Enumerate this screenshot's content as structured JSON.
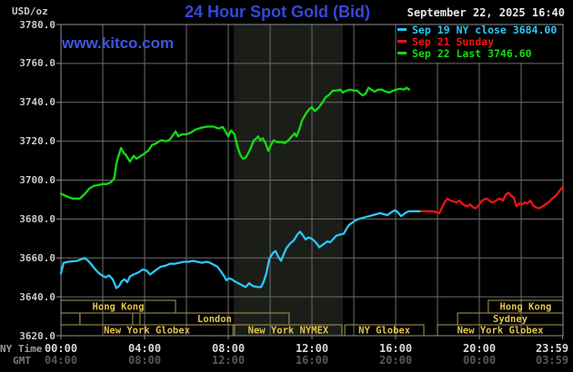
{
  "header": {
    "unit": "USD/oz",
    "title": "24 Hour Spot Gold (Bid)",
    "datetime": "September 22, 2025 16:40",
    "watermark": "www.kitco.com"
  },
  "legend": {
    "items": [
      {
        "label": "Sep 19 NY close 3684.00",
        "color": "#2cc7f6"
      },
      {
        "label": "Sep 21 Sunday",
        "color": "#f21414"
      },
      {
        "label": "Sep 22 Last 3746.60",
        "color": "#13dc13"
      }
    ]
  },
  "axis": {
    "ny_time_label": "NY Time",
    "gmt_label": "GMT",
    "y_ticks": [
      "3780.0",
      "3760.0",
      "3740.0",
      "3720.0",
      "3700.0",
      "3680.0",
      "3660.0",
      "3640.0",
      "3620.0"
    ],
    "x_ticks": [
      {
        "hour": 0,
        "ny": "00:00",
        "gmt": "04:00"
      },
      {
        "hour": 4,
        "ny": "04:00",
        "gmt": "08:00"
      },
      {
        "hour": 8,
        "ny": "08:00",
        "gmt": "12:00"
      },
      {
        "hour": 12,
        "ny": "12:00",
        "gmt": "16:00"
      },
      {
        "hour": 16,
        "ny": "16:00",
        "gmt": "20:00"
      },
      {
        "hour": 20,
        "ny": "20:00",
        "gmt": "00:00"
      },
      {
        "hour": 23.983,
        "ny": "23:59",
        "gmt": "03:59"
      }
    ]
  },
  "sessions": {
    "rows": [
      {
        "boxes": [
          {
            "start_hour": 0,
            "end_hour": 5.48,
            "label": "Hong Kong"
          },
          {
            "start_hour": 20.43,
            "end_hour": 24,
            "label": "Hong Kong"
          }
        ]
      },
      {
        "boxes": [
          {
            "start_hour": 0,
            "end_hour": 0.91,
            "label": ""
          },
          {
            "start_hour": 0.91,
            "end_hour": 3.43,
            "label": ""
          },
          {
            "start_hour": 3.78,
            "end_hour": 10.91,
            "label": "London"
          },
          {
            "start_hour": 18.96,
            "end_hour": 24,
            "label": "Sydney"
          }
        ]
      },
      {
        "boxes": [
          {
            "start_hour": 0,
            "end_hour": 8.22,
            "label": "New York Globex"
          },
          {
            "start_hour": 8.3,
            "end_hour": 13.43,
            "label": "New York NYMEX"
          },
          {
            "start_hour": 13.57,
            "end_hour": 17.35,
            "label": "NY Globex"
          },
          {
            "start_hour": 18,
            "end_hour": 24,
            "label": "New York Globex"
          }
        ]
      }
    ]
  },
  "colors": {
    "background": "#000000",
    "plot_border": "#8f8f8f",
    "grid": "#6e6e6e",
    "band": "#1a1d18",
    "session_border": "#a79d52",
    "session_text": "#e2c24e",
    "ny_numbers": "#d9d9d9",
    "gmt_numbers": "#585858"
  },
  "chart_data": {
    "type": "line",
    "title": "24 Hour Spot Gold (Bid)",
    "ylabel": "USD/oz",
    "ylim": [
      3620,
      3780
    ],
    "xlim_hours": [
      0,
      24
    ],
    "grid": true,
    "band_hours": [
      8.26,
      13.48
    ],
    "band_note": "New York NYMEX session highlight",
    "series": [
      {
        "name": "Sep 22 Last 3746.60",
        "color": "#13dc13",
        "points": [
          [
            0,
            3693
          ],
          [
            0.3,
            3691.5
          ],
          [
            0.55,
            3690.5
          ],
          [
            0.9,
            3690.5
          ],
          [
            1.15,
            3693
          ],
          [
            1.35,
            3695.5
          ],
          [
            1.55,
            3697
          ],
          [
            1.8,
            3697.5
          ],
          [
            2,
            3698
          ],
          [
            2.2,
            3698
          ],
          [
            2.4,
            3699
          ],
          [
            2.55,
            3701
          ],
          [
            2.65,
            3708.5
          ],
          [
            2.87,
            3716.5
          ],
          [
            3,
            3714
          ],
          [
            3.1,
            3713
          ],
          [
            3.3,
            3709.5
          ],
          [
            3.48,
            3712.5
          ],
          [
            3.6,
            3711
          ],
          [
            3.7,
            3711.5
          ],
          [
            3.96,
            3713.5
          ],
          [
            4.17,
            3715
          ],
          [
            4.35,
            3718
          ],
          [
            4.57,
            3719
          ],
          [
            4.78,
            3720.5
          ],
          [
            5.04,
            3720
          ],
          [
            5.22,
            3721
          ],
          [
            5.48,
            3725
          ],
          [
            5.61,
            3722.5
          ],
          [
            5.78,
            3723.5
          ],
          [
            6,
            3723.5
          ],
          [
            6.22,
            3724.5
          ],
          [
            6.43,
            3726
          ],
          [
            6.74,
            3727
          ],
          [
            7,
            3727.5
          ],
          [
            7.3,
            3727.5
          ],
          [
            7.52,
            3726.5
          ],
          [
            7.74,
            3727.3
          ],
          [
            7.87,
            3725
          ],
          [
            8,
            3722.5
          ],
          [
            8.13,
            3725.5
          ],
          [
            8.3,
            3723.5
          ],
          [
            8.43,
            3717.5
          ],
          [
            8.57,
            3713
          ],
          [
            8.7,
            3711
          ],
          [
            8.83,
            3711.5
          ],
          [
            8.96,
            3714
          ],
          [
            9.09,
            3717
          ],
          [
            9.22,
            3720.5
          ],
          [
            9.35,
            3721.5
          ],
          [
            9.43,
            3722.5
          ],
          [
            9.52,
            3720.5
          ],
          [
            9.65,
            3721.5
          ],
          [
            9.78,
            3719
          ],
          [
            9.91,
            3715
          ],
          [
            10.04,
            3718
          ],
          [
            10.17,
            3720.5
          ],
          [
            10.35,
            3719.5
          ],
          [
            10.52,
            3719.5
          ],
          [
            10.7,
            3719
          ],
          [
            10.87,
            3720.5
          ],
          [
            11.04,
            3722.5
          ],
          [
            11.17,
            3724
          ],
          [
            11.26,
            3722.5
          ],
          [
            11.39,
            3726
          ],
          [
            11.52,
            3730.5
          ],
          [
            11.7,
            3734
          ],
          [
            11.87,
            3736.5
          ],
          [
            12,
            3737.5
          ],
          [
            12.13,
            3735.5
          ],
          [
            12.3,
            3737
          ],
          [
            12.48,
            3739.5
          ],
          [
            12.65,
            3742.5
          ],
          [
            12.83,
            3744
          ],
          [
            13,
            3746
          ],
          [
            13.17,
            3746
          ],
          [
            13.35,
            3746.5
          ],
          [
            13.48,
            3745
          ],
          [
            13.65,
            3746
          ],
          [
            13.83,
            3746.5
          ],
          [
            14,
            3746
          ],
          [
            14.17,
            3746
          ],
          [
            14.3,
            3744.5
          ],
          [
            14.43,
            3743.5
          ],
          [
            14.57,
            3744.5
          ],
          [
            14.7,
            3747.5
          ],
          [
            14.83,
            3746.5
          ],
          [
            15,
            3745.5
          ],
          [
            15.17,
            3746.5
          ],
          [
            15.35,
            3746.5
          ],
          [
            15.52,
            3745.5
          ],
          [
            15.7,
            3745
          ],
          [
            15.87,
            3746
          ],
          [
            16.04,
            3746.5
          ],
          [
            16.22,
            3747
          ],
          [
            16.39,
            3746.5
          ],
          [
            16.52,
            3747.5
          ],
          [
            16.65,
            3746.6
          ]
        ]
      },
      {
        "name": "Sep 19 NY close 3684.00",
        "color": "#2cc7f6",
        "points": [
          [
            0,
            3652
          ],
          [
            0.13,
            3657.5
          ],
          [
            0.35,
            3658
          ],
          [
            0.78,
            3658.5
          ],
          [
            1.13,
            3660
          ],
          [
            1.3,
            3658.5
          ],
          [
            1.43,
            3657
          ],
          [
            1.61,
            3654.5
          ],
          [
            1.78,
            3652.5
          ],
          [
            1.96,
            3651
          ],
          [
            2.13,
            3650
          ],
          [
            2.3,
            3651
          ],
          [
            2.48,
            3649
          ],
          [
            2.65,
            3644.5
          ],
          [
            2.78,
            3645.5
          ],
          [
            2.91,
            3648
          ],
          [
            3.04,
            3649
          ],
          [
            3.17,
            3647.5
          ],
          [
            3.3,
            3650.5
          ],
          [
            3.48,
            3651.5
          ],
          [
            3.7,
            3652.5
          ],
          [
            3.91,
            3654
          ],
          [
            4.09,
            3653.5
          ],
          [
            4.26,
            3651.5
          ],
          [
            4.39,
            3652.5
          ],
          [
            4.57,
            3654
          ],
          [
            4.78,
            3655.5
          ],
          [
            5,
            3656
          ],
          [
            5.22,
            3657
          ],
          [
            5.43,
            3657
          ],
          [
            5.65,
            3657.5
          ],
          [
            5.87,
            3658
          ],
          [
            6.09,
            3658
          ],
          [
            6.3,
            3658.5
          ],
          [
            6.52,
            3658
          ],
          [
            6.74,
            3657.5
          ],
          [
            6.96,
            3658
          ],
          [
            7.13,
            3657.5
          ],
          [
            7.3,
            3656.5
          ],
          [
            7.48,
            3655.5
          ],
          [
            7.65,
            3653
          ],
          [
            7.78,
            3651
          ],
          [
            7.91,
            3648.5
          ],
          [
            8.04,
            3649.5
          ],
          [
            8.17,
            3649
          ],
          [
            8.3,
            3648
          ],
          [
            8.48,
            3647
          ],
          [
            8.65,
            3646
          ],
          [
            8.83,
            3645
          ],
          [
            9,
            3647
          ],
          [
            9.17,
            3645.5
          ],
          [
            9.39,
            3645
          ],
          [
            9.57,
            3645
          ],
          [
            9.7,
            3648
          ],
          [
            9.83,
            3652.5
          ],
          [
            9.96,
            3659.5
          ],
          [
            10.13,
            3662.5
          ],
          [
            10.26,
            3663.5
          ],
          [
            10.39,
            3660.5
          ],
          [
            10.52,
            3658.5
          ],
          [
            10.65,
            3662
          ],
          [
            10.78,
            3665
          ],
          [
            10.96,
            3667.5
          ],
          [
            11.13,
            3669
          ],
          [
            11.3,
            3672
          ],
          [
            11.43,
            3673.5
          ],
          [
            11.57,
            3671.5
          ],
          [
            11.7,
            3669.5
          ],
          [
            11.83,
            3670.5
          ],
          [
            11.96,
            3670
          ],
          [
            12.09,
            3669
          ],
          [
            12.22,
            3667.5
          ],
          [
            12.35,
            3665.5
          ],
          [
            12.48,
            3666.5
          ],
          [
            12.61,
            3667.5
          ],
          [
            12.74,
            3668.5
          ],
          [
            12.87,
            3668
          ],
          [
            13,
            3669.5
          ],
          [
            13.17,
            3671.5
          ],
          [
            13.35,
            3672
          ],
          [
            13.52,
            3672.5
          ],
          [
            13.65,
            3675
          ],
          [
            13.78,
            3677
          ],
          [
            13.91,
            3678
          ],
          [
            14.04,
            3679
          ],
          [
            14.22,
            3680
          ],
          [
            14.39,
            3680.5
          ],
          [
            14.57,
            3681
          ],
          [
            14.74,
            3681.5
          ],
          [
            14.91,
            3682
          ],
          [
            15.09,
            3682.5
          ],
          [
            15.26,
            3683
          ],
          [
            15.43,
            3682.5
          ],
          [
            15.61,
            3682
          ],
          [
            15.74,
            3683
          ],
          [
            15.87,
            3684
          ],
          [
            16,
            3684.5
          ],
          [
            16.13,
            3683
          ],
          [
            16.26,
            3681.5
          ],
          [
            16.39,
            3682.5
          ],
          [
            16.52,
            3683.5
          ],
          [
            16.65,
            3684
          ],
          [
            16.91,
            3684
          ],
          [
            17.22,
            3684
          ]
        ]
      },
      {
        "name": "Sep 21 Sunday",
        "color": "#f21414",
        "points": [
          [
            17.22,
            3684
          ],
          [
            17.74,
            3684
          ],
          [
            17.96,
            3683.5
          ],
          [
            18.09,
            3683
          ],
          [
            18.22,
            3686
          ],
          [
            18.35,
            3689
          ],
          [
            18.48,
            3690.5
          ],
          [
            18.61,
            3689.5
          ],
          [
            18.78,
            3689
          ],
          [
            18.91,
            3688.5
          ],
          [
            19.04,
            3689.5
          ],
          [
            19.17,
            3688
          ],
          [
            19.3,
            3687
          ],
          [
            19.43,
            3686.5
          ],
          [
            19.57,
            3687.5
          ],
          [
            19.7,
            3686
          ],
          [
            19.83,
            3685.5
          ],
          [
            19.96,
            3687
          ],
          [
            20.09,
            3689
          ],
          [
            20.22,
            3690
          ],
          [
            20.35,
            3690.5
          ],
          [
            20.48,
            3689.5
          ],
          [
            20.61,
            3688.5
          ],
          [
            20.74,
            3689
          ],
          [
            20.87,
            3690
          ],
          [
            21,
            3690.5
          ],
          [
            21.13,
            3689.5
          ],
          [
            21.26,
            3692.5
          ],
          [
            21.39,
            3693.5
          ],
          [
            21.52,
            3692
          ],
          [
            21.65,
            3691
          ],
          [
            21.78,
            3686.5
          ],
          [
            21.91,
            3688
          ],
          [
            22.04,
            3687.5
          ],
          [
            22.17,
            3688.5
          ],
          [
            22.3,
            3688
          ],
          [
            22.43,
            3689.5
          ],
          [
            22.57,
            3687
          ],
          [
            22.7,
            3686
          ],
          [
            22.83,
            3685.5
          ],
          [
            22.96,
            3686
          ],
          [
            23.09,
            3687
          ],
          [
            23.22,
            3688
          ],
          [
            23.35,
            3689
          ],
          [
            23.48,
            3690.5
          ],
          [
            23.61,
            3691.5
          ],
          [
            23.74,
            3693
          ],
          [
            23.87,
            3695
          ],
          [
            24,
            3696.5
          ]
        ]
      }
    ]
  }
}
